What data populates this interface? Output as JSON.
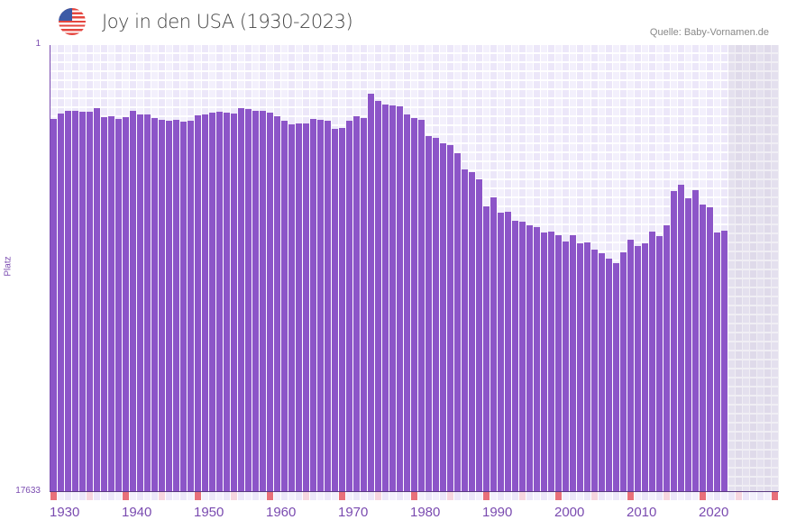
{
  "header": {
    "title": "Joy in den USA (1930-2023)",
    "source": "Quelle: Baby-Vornamen.de",
    "flag_icon": "us-flag-icon"
  },
  "colors": {
    "bar": "#8c55c8",
    "decade_marker": "#e8707a",
    "half_decade_marker": "#f6d6df",
    "axis": "#7a4bb0"
  },
  "chart_data": {
    "type": "bar",
    "title": "Joy in den USA (1930-2023)",
    "xlabel": "",
    "ylabel": "Platz",
    "y_inverted": true,
    "ylim": [
      1,
      17633
    ],
    "ytick_labels": [
      "1",
      "17633"
    ],
    "x_range": [
      1930,
      2030
    ],
    "xtick_labels": [
      "1930",
      "1940",
      "1950",
      "1960",
      "1970",
      "1980",
      "1990",
      "2000",
      "2010",
      "2020"
    ],
    "years": [
      1930,
      1931,
      1932,
      1933,
      1934,
      1935,
      1936,
      1937,
      1938,
      1939,
      1940,
      1941,
      1942,
      1943,
      1944,
      1945,
      1946,
      1947,
      1948,
      1949,
      1950,
      1951,
      1952,
      1953,
      1954,
      1955,
      1956,
      1957,
      1958,
      1959,
      1960,
      1961,
      1962,
      1963,
      1964,
      1965,
      1966,
      1967,
      1968,
      1969,
      1970,
      1971,
      1972,
      1973,
      1974,
      1975,
      1976,
      1977,
      1978,
      1979,
      1980,
      1981,
      1982,
      1983,
      1984,
      1985,
      1986,
      1987,
      1988,
      1989,
      1990,
      1991,
      1992,
      1993,
      1994,
      1995,
      1996,
      1997,
      1998,
      1999,
      2000,
      2001,
      2002,
      2003,
      2004,
      2005,
      2006,
      2007,
      2008,
      2009,
      2010,
      2011,
      2012,
      2013,
      2014,
      2015,
      2016,
      2017,
      2018,
      2019,
      2020,
      2021,
      2022,
      2023
    ],
    "ranks": [
      484,
      416,
      383,
      383,
      394,
      394,
      353,
      461,
      449,
      484,
      461,
      383,
      427,
      427,
      472,
      496,
      508,
      496,
      520,
      508,
      438,
      427,
      405,
      394,
      405,
      416,
      353,
      363,
      383,
      383,
      405,
      449,
      508,
      557,
      545,
      545,
      484,
      496,
      508,
      622,
      609,
      508,
      449,
      472,
      210,
      277,
      313,
      323,
      333,
      427,
      472,
      496,
      734,
      763,
      855,
      887,
      1036,
      1370,
      1431,
      1598,
      2306,
      2055,
      2490,
      2463,
      2736,
      2764,
      2878,
      2936,
      3113,
      3083,
      3204,
      3420,
      3204,
      3483,
      3451,
      3708,
      3840,
      4042,
      4214,
      3807,
      3357,
      3578,
      3483,
      3083,
      3234,
      2878,
      1889,
      1729,
      2080,
      1865,
      2254,
      2332,
      3113,
      3054
    ]
  }
}
